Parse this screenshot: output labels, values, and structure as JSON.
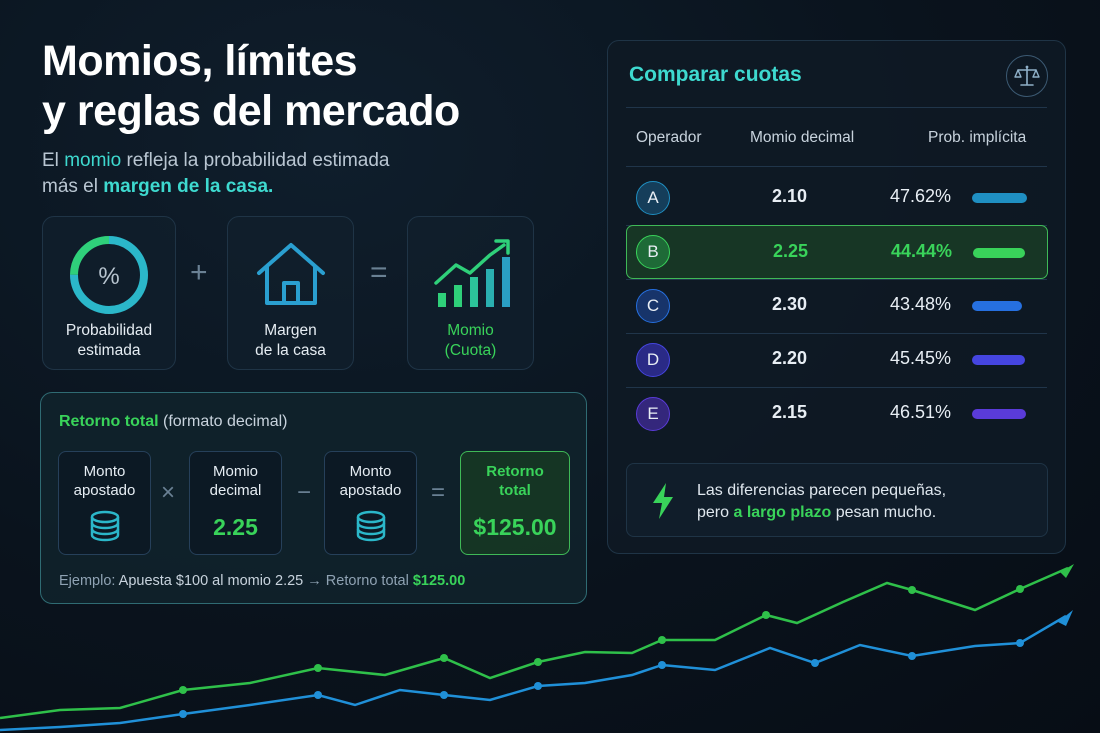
{
  "header": {
    "title_line1": "Momios, límites",
    "title_line2": "y reglas del mercado",
    "subtitle_pre": "El ",
    "subtitle_momio": "momio",
    "subtitle_mid": " refleja la probabilidad estimada",
    "subtitle_line2_pre": "más el ",
    "subtitle_margen": "margen de la casa.",
    "accent_color": "#3ed9cf"
  },
  "formula": {
    "probability_line1": "Probabilidad",
    "probability_line2": "estimada",
    "percent_symbol": "%",
    "plus": "+",
    "margin_line1": "Margen",
    "margin_line2": "de la casa",
    "equals": "=",
    "odds_line1": "Momio",
    "odds_line2": "(Cuota)"
  },
  "return_total": {
    "title_bold": "Retorno total",
    "title_rest": " (formato decimal)",
    "stake_line1": "Monto",
    "stake_line2": "apostado",
    "times": "×",
    "decimal_line1": "Momio",
    "decimal_line2": "decimal",
    "decimal_value": "2.25",
    "minus": "−",
    "stake2_line1": "Monto",
    "stake2_line2": "apostado",
    "equals": "=",
    "result_line1": "Retorno",
    "result_line2": "total",
    "result_value": "$125.00",
    "example_label": "Ejemplo:",
    "example_text": " Apuesta $100 al momio 2.25 ",
    "example_arrow": "→",
    "example_result_label": " Retorno total ",
    "example_result_value": "$125.00",
    "highlight_color": "#39d35a"
  },
  "compare": {
    "title": "Comparar cuotas",
    "icon": "scale-icon",
    "headers": {
      "operator": "Operador",
      "decimal": "Momio decimal",
      "implied": "Prob. implícita"
    },
    "rows": [
      {
        "operator": "A",
        "odds": "2.10",
        "prob": "47.62%",
        "prob_value": 47.62,
        "color": "#1f8fc2",
        "badge": "#153e5a"
      },
      {
        "operator": "B",
        "odds": "2.25",
        "prob": "44.44%",
        "prob_value": 44.44,
        "color": "#39d35a",
        "badge": "#1e6a37",
        "selected": true
      },
      {
        "operator": "C",
        "odds": "2.30",
        "prob": "43.48%",
        "prob_value": 43.48,
        "color": "#2670e0",
        "badge": "#17346a"
      },
      {
        "operator": "D",
        "odds": "2.20",
        "prob": "45.45%",
        "prob_value": 45.45,
        "color": "#4545e0",
        "badge": "#2a2a86"
      },
      {
        "operator": "E",
        "odds": "2.15",
        "prob": "46.51%",
        "prob_value": 46.51,
        "color": "#5a3bd8",
        "badge": "#34277c"
      }
    ],
    "tip_pre": "Las diferencias parecen pequeñas,",
    "tip_line2_pre": "pero ",
    "tip_highlight": "a largo plazo",
    "tip_post": " pesan mucho."
  }
}
